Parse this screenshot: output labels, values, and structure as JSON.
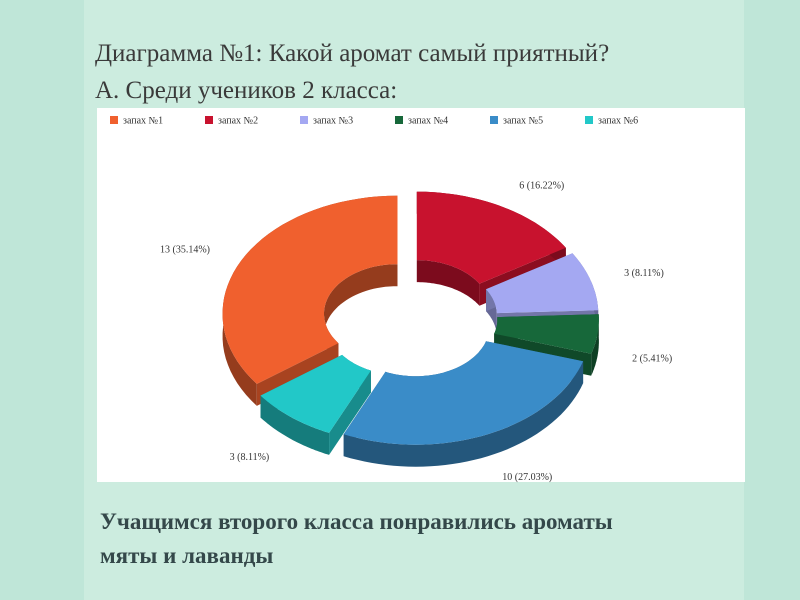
{
  "chart_data": {
    "type": "doughnut",
    "title": "Диаграмма №1: Какой аромат самый приятный?",
    "subtitle": "А. Среди учеников 2 класса:",
    "categories": [
      "запах №1",
      "запах №2",
      "запах №3",
      "запах №4",
      "запах №5",
      "запах №6"
    ],
    "values": [
      13,
      6,
      3,
      2,
      10,
      3
    ],
    "value_labels": [
      "13 (35.14%)",
      "6 (16.22%)",
      "3 (8.11%)",
      "2 (5.41%)",
      "10 (27.03%)",
      "3 (8.11%)"
    ],
    "colors": [
      "#f0602e",
      "#c8122e",
      "#a4a8f2",
      "#17683a",
      "#3a8cc8",
      "#22c8c8"
    ],
    "legend": "top"
  },
  "conclusion": "Учащимся второго класса понравились ароматы мяты и лаванды"
}
